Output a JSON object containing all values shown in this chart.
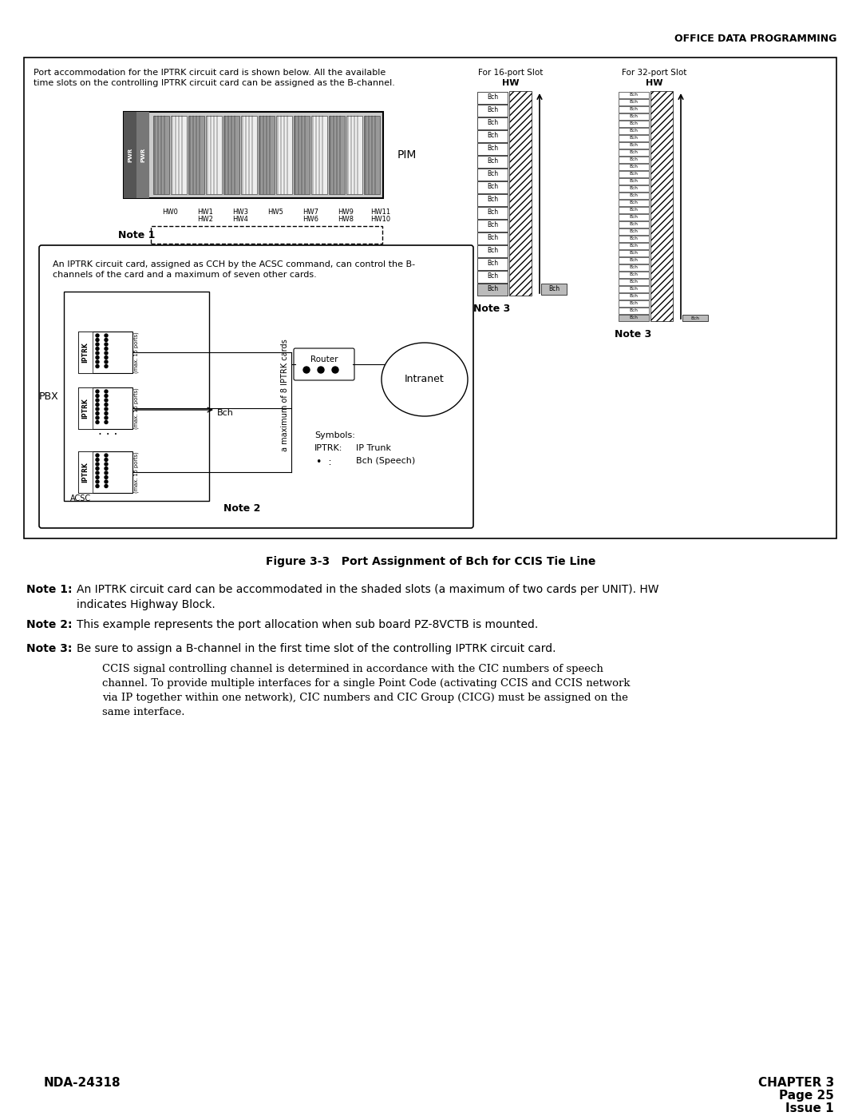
{
  "page_header": "OFFICE DATA PROGRAMMING",
  "figure_caption": "Figure 3-3   Port Assignment of Bch for CCIS Tie Line",
  "note1_bold": "Note 1:",
  "note1_text": "An IPTRK circuit card can be accommodated in the shaded slots (a maximum of two cards per UNIT). HW",
  "note1_text2": "indicates Highway Block.",
  "note2_bold": "Note 2:",
  "note2_text": "This example represents the port allocation when sub board PZ-8VCTB is mounted.",
  "note3_bold": "Note 3:",
  "note3_text": "Be sure to assign a B-channel in the first time slot of the controlling IPTRK circuit card.",
  "note3_sub1": "CCIS signal controlling channel is determined in accordance with the CIC numbers of speech",
  "note3_sub2": "channel. To provide multiple interfaces for a single Point Code (activating CCIS and CCIS network",
  "note3_sub3": "via IP together within one network), CIC numbers and CIC Group (CICG) must be assigned on the",
  "note3_sub4": "same interface.",
  "footer_left": "NDA-24318",
  "footer_right_line1": "CHAPTER 3",
  "footer_right_line2": "Page 25",
  "footer_right_line3": "Issue 1",
  "box_text1": "Port accommodation for the IPTRK circuit card is shown below. All the available",
  "box_text2": "time slots on the controlling IPTRK circuit card can be assigned as the B-channel.",
  "for_16port_line1": "For 16-port Slot",
  "for_16port_line2": "HW",
  "for_32port_line1": "For 32-port Slot",
  "for_32port_line2": "HW",
  "pim_label": "PIM",
  "note1_label": "Note 1",
  "note3_label": "Note 3",
  "note2_label": "Note 2",
  "pbx_label": "PBX",
  "acsc_label": "ACSC",
  "router_label": "Router",
  "intranet_label": "Intranet",
  "bch_label": "Bch",
  "symbols_label": "Symbols:",
  "iptrk_sym": "IPTRK:",
  "iptrk_meaning": "IP Trunk",
  "dot_meaning": "Bch (Speech)",
  "vertical_text": "a maximum of 8 IPTRK cards",
  "bg_color": "#ffffff"
}
